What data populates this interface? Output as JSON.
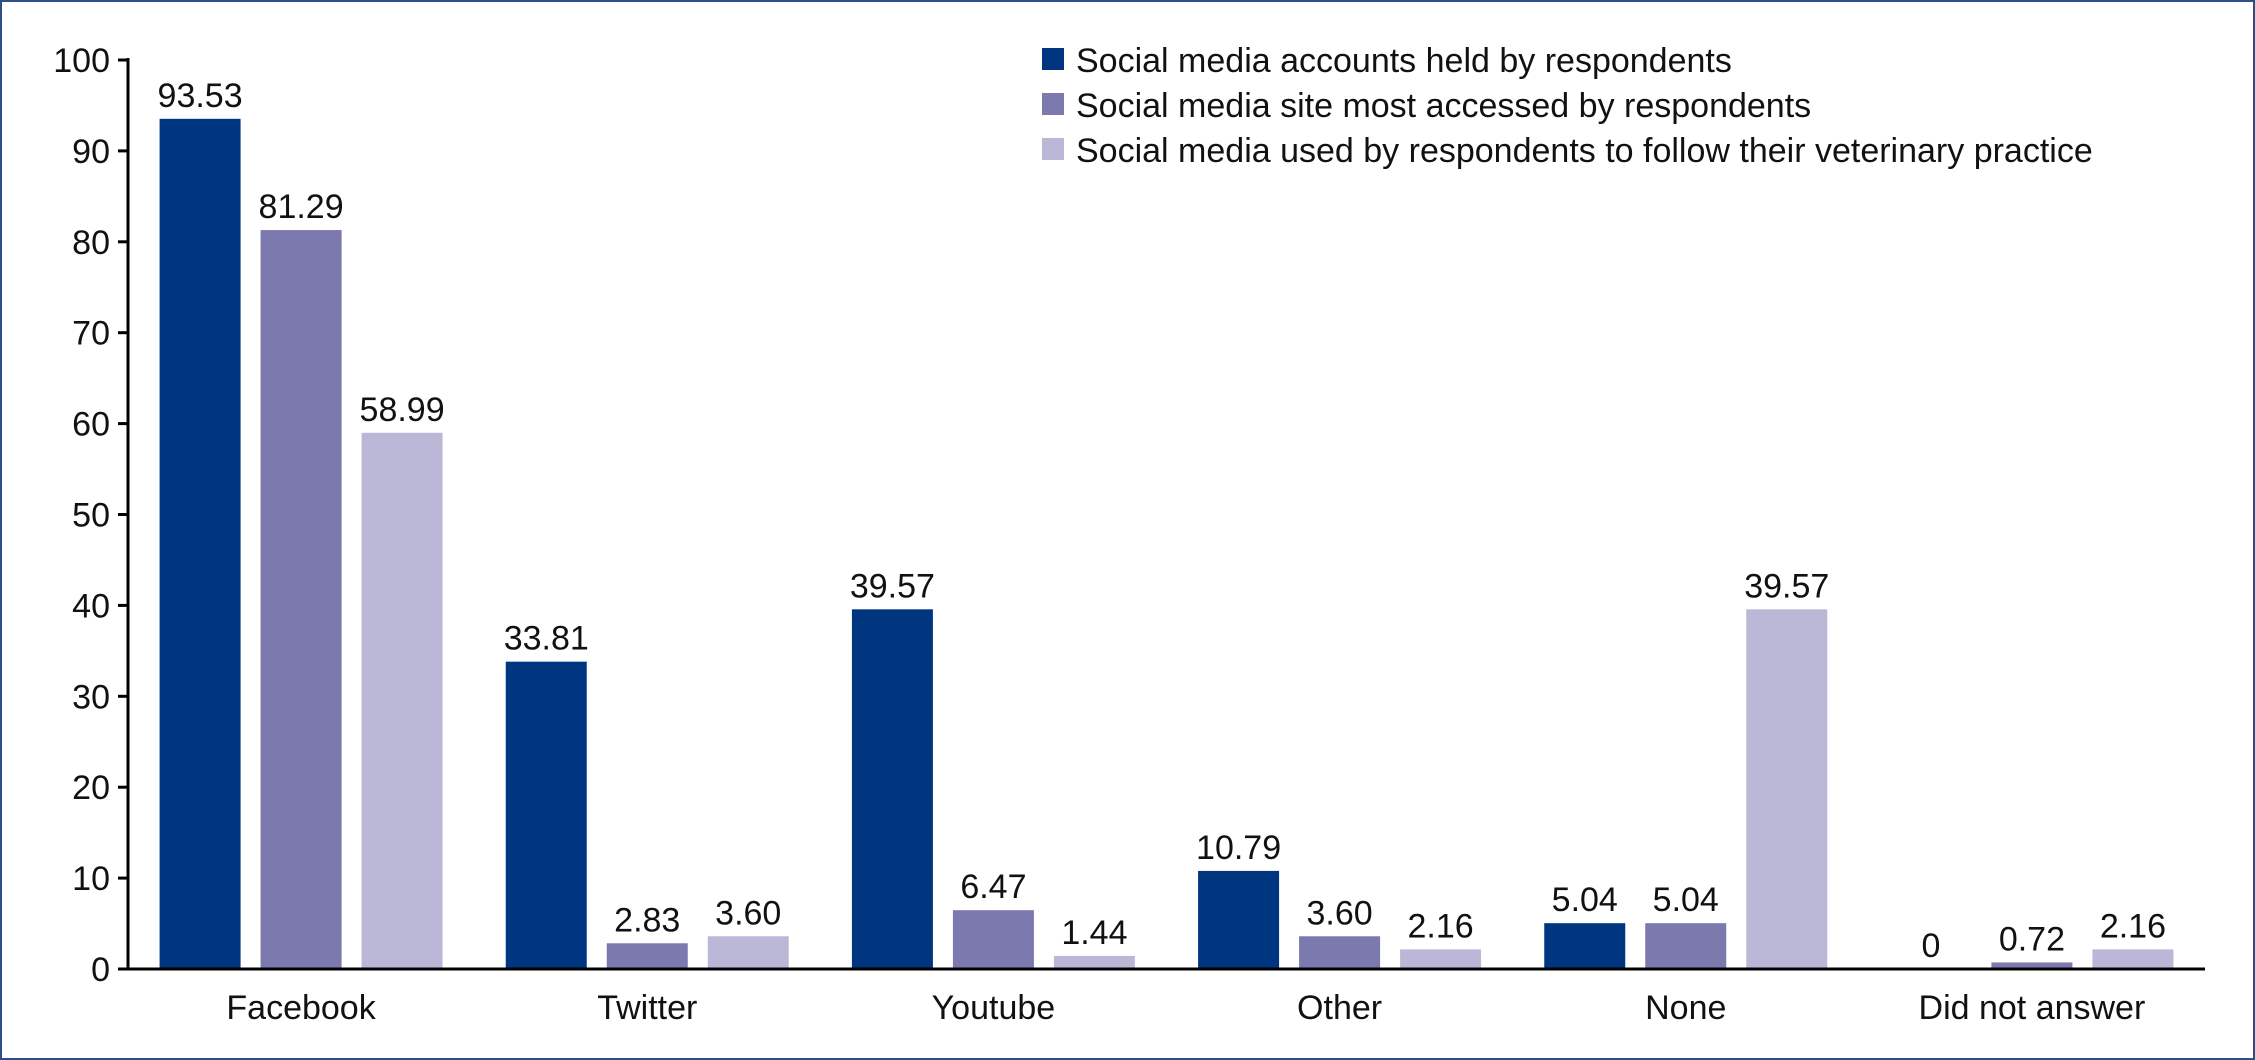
{
  "chart_data": {
    "type": "bar",
    "title": "",
    "xlabel": "",
    "ylabel": "",
    "ylim": [
      0,
      100
    ],
    "yticks": [
      0,
      10,
      20,
      30,
      40,
      50,
      60,
      70,
      80,
      90,
      100
    ],
    "grid": false,
    "legend_position": "top-right",
    "categories": [
      "Facebook",
      "Twitter",
      "Youtube",
      "Other",
      "None",
      "Did not answer"
    ],
    "series": [
      {
        "name": "Social media accounts held by respondents",
        "color": "#003580",
        "values": [
          93.53,
          33.81,
          39.57,
          10.79,
          5.04,
          0
        ],
        "labels": [
          "93.53",
          "33.81",
          "39.57",
          "10.79",
          "5.04",
          "0"
        ]
      },
      {
        "name": "Social media site most accessed by respondents",
        "color": "#7b79ad",
        "values": [
          81.29,
          2.83,
          6.47,
          3.6,
          5.04,
          0.72
        ],
        "labels": [
          "81.29",
          "2.83",
          "6.47",
          "3.60",
          "5.04",
          "0.72"
        ]
      },
      {
        "name": "Social media used by respondents to follow their veterinary practice",
        "color": "#bbb8d7",
        "values": [
          58.99,
          3.6,
          1.44,
          2.16,
          39.57,
          2.16
        ],
        "labels": [
          "58.99",
          "3.60",
          "1.44",
          "2.16",
          "39.57",
          "2.16"
        ]
      }
    ]
  }
}
